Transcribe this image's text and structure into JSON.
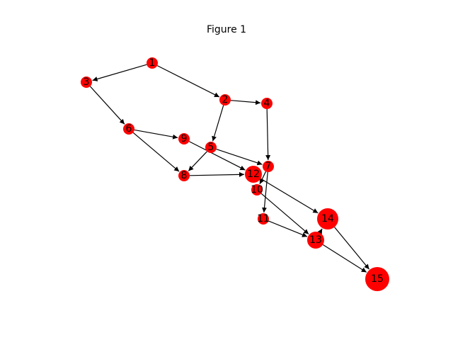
{
  "figure": {
    "title": "Figure 1"
  },
  "colors": {
    "node_fill": "#ff0000",
    "edge": "#000000",
    "label": "#000000"
  },
  "graph": {
    "directed": true,
    "nodes": [
      {
        "id": "1",
        "label": "1",
        "size": "small"
      },
      {
        "id": "2",
        "label": "2",
        "size": "small"
      },
      {
        "id": "3",
        "label": "3",
        "size": "small"
      },
      {
        "id": "4",
        "label": "4",
        "size": "small"
      },
      {
        "id": "5",
        "label": "5",
        "size": "small"
      },
      {
        "id": "6",
        "label": "6",
        "size": "small"
      },
      {
        "id": "7",
        "label": "7",
        "size": "small"
      },
      {
        "id": "8",
        "label": "8",
        "size": "small"
      },
      {
        "id": "9",
        "label": "9",
        "size": "small"
      },
      {
        "id": "10",
        "label": "10",
        "size": "small"
      },
      {
        "id": "11",
        "label": "11",
        "size": "small"
      },
      {
        "id": "12",
        "label": "12",
        "size": "medium"
      },
      {
        "id": "13",
        "label": "13",
        "size": "medium"
      },
      {
        "id": "14",
        "label": "14",
        "size": "large"
      },
      {
        "id": "15",
        "label": "15",
        "size": "xlarge"
      }
    ],
    "edges": [
      {
        "from": "1",
        "to": "3"
      },
      {
        "from": "1",
        "to": "2"
      },
      {
        "from": "2",
        "to": "4"
      },
      {
        "from": "2",
        "to": "5"
      },
      {
        "from": "3",
        "to": "6"
      },
      {
        "from": "4",
        "to": "7"
      },
      {
        "from": "5",
        "to": "8"
      },
      {
        "from": "5",
        "to": "7"
      },
      {
        "from": "6",
        "to": "9"
      },
      {
        "from": "6",
        "to": "8"
      },
      {
        "from": "9",
        "to": "12"
      },
      {
        "from": "8",
        "to": "12"
      },
      {
        "from": "7",
        "to": "11"
      },
      {
        "from": "7",
        "to": "10"
      },
      {
        "from": "12",
        "to": "14"
      },
      {
        "from": "10",
        "to": "13"
      },
      {
        "from": "11",
        "to": "13"
      },
      {
        "from": "13",
        "to": "14"
      },
      {
        "from": "13",
        "to": "15"
      },
      {
        "from": "14",
        "to": "15"
      }
    ]
  }
}
